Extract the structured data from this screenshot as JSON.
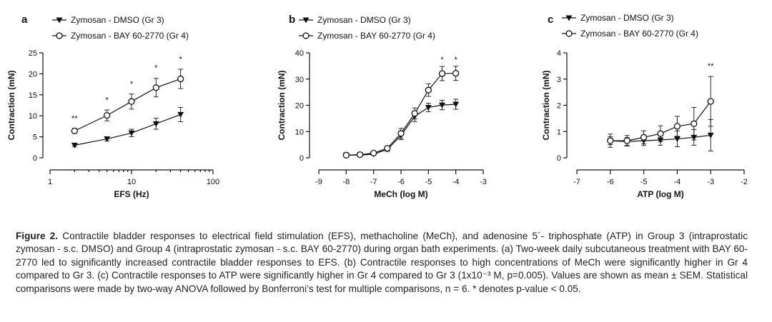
{
  "chart_data": [
    {
      "panel": "a",
      "type": "line",
      "xscale": "log",
      "xlabel": "EFS (Hz)",
      "ylabel": "Contraction (mN)",
      "xlim": [
        1,
        100
      ],
      "ylim": [
        0,
        25
      ],
      "xticks": [
        1,
        10,
        100
      ],
      "yticks": [
        0,
        5,
        10,
        15,
        20,
        25
      ],
      "legend_placement": "top-left",
      "grid": false,
      "series": [
        {
          "name": "Zymosan - DMSO (Gr 3)",
          "marker": "filled-triangle-down",
          "x": [
            2,
            5,
            10,
            20,
            40
          ],
          "y": [
            3.0,
            4.5,
            5.9,
            8.1,
            10.3
          ],
          "sem": [
            0.3,
            0.5,
            0.9,
            1.3,
            1.7
          ]
        },
        {
          "name": "Zymosan - BAY 60-2770 (Gr 4)",
          "marker": "open-circle",
          "x": [
            2,
            5,
            10,
            20,
            40
          ],
          "y": [
            6.4,
            10.1,
            13.4,
            16.7,
            18.8
          ],
          "sem": [
            0.6,
            1.3,
            1.8,
            2.2,
            2.3
          ]
        }
      ],
      "annotations": [
        {
          "x": 2,
          "y": 8.8,
          "text": "**"
        },
        {
          "x": 5,
          "y": 13.2,
          "text": "*"
        },
        {
          "x": 10,
          "y": 17.0,
          "text": "*"
        },
        {
          "x": 20,
          "y": 20.8,
          "text": "*"
        },
        {
          "x": 40,
          "y": 22.9,
          "text": "*"
        }
      ]
    },
    {
      "panel": "b",
      "type": "line",
      "xscale": "linear",
      "xlabel": "MeCh (log M)",
      "ylabel": "Contraction (mN)",
      "xlim": [
        -9,
        -3
      ],
      "ylim": [
        0,
        40
      ],
      "xticks": [
        -9,
        -8,
        -7,
        -6,
        -5,
        -4,
        -3
      ],
      "yticks": [
        0,
        10,
        20,
        30,
        40
      ],
      "legend_placement": "top-left",
      "grid": false,
      "series": [
        {
          "name": "Zymosan - DMSO (Gr 3)",
          "marker": "filled-triangle-down",
          "x": [
            -8,
            -7.5,
            -7,
            -6.5,
            -6,
            -5.5,
            -5,
            -4.5,
            -4
          ],
          "y": [
            1.0,
            1.0,
            1.4,
            3.2,
            8.5,
            15.8,
            19.2,
            20.1,
            20.4
          ],
          "sem": [
            0.3,
            0.3,
            0.4,
            0.7,
            1.6,
            2.0,
            1.6,
            1.8,
            1.9
          ]
        },
        {
          "name": "Zymosan - BAY 60-2770 (Gr 4)",
          "marker": "open-circle",
          "x": [
            -8,
            -7.5,
            -7,
            -6.5,
            -6,
            -5.5,
            -5,
            -4.5,
            -4
          ],
          "y": [
            1.0,
            1.2,
            1.8,
            3.6,
            9.3,
            16.9,
            25.8,
            32.1,
            32.2
          ],
          "sem": [
            0.3,
            0.3,
            0.4,
            0.8,
            1.9,
            2.1,
            2.4,
            2.7,
            2.7
          ]
        }
      ],
      "annotations": [
        {
          "x": -4.5,
          "y": 36.5,
          "text": "*"
        },
        {
          "x": -4,
          "y": 36.5,
          "text": "*"
        }
      ]
    },
    {
      "panel": "c",
      "type": "line",
      "xscale": "linear",
      "xlabel": "ATP (log M)",
      "ylabel": "Contraction (mN)",
      "xlim": [
        -7,
        -2
      ],
      "ylim": [
        0,
        4
      ],
      "xticks": [
        -7,
        -6,
        -5,
        -4,
        -3,
        -2
      ],
      "yticks": [
        0,
        1,
        2,
        3,
        4
      ],
      "legend_placement": "top-left",
      "grid": false,
      "series": [
        {
          "name": "Zymosan - DMSO (Gr 3)",
          "marker": "filled-triangle-down",
          "x": [
            -6,
            -5.5,
            -5,
            -4.5,
            -4,
            -3.5,
            -3
          ],
          "y": [
            0.65,
            0.62,
            0.65,
            0.68,
            0.72,
            0.78,
            0.86
          ],
          "sem": [
            0.15,
            0.15,
            0.18,
            0.2,
            0.3,
            0.3,
            0.6
          ]
        },
        {
          "name": "Zymosan - BAY 60-2770 (Gr 4)",
          "marker": "open-circle",
          "x": [
            -6,
            -5.5,
            -5,
            -4.5,
            -4,
            -3.5,
            -3
          ],
          "y": [
            0.65,
            0.65,
            0.78,
            0.92,
            1.2,
            1.3,
            2.15
          ],
          "sem": [
            0.25,
            0.2,
            0.25,
            0.3,
            0.38,
            0.62,
            0.95
          ]
        }
      ],
      "annotations": [
        {
          "x": -3,
          "y": 3.4,
          "text": "**"
        }
      ]
    }
  ],
  "caption": {
    "label": "Figure 2.",
    "text": " Contractile bladder responses to electrical field stimulation (EFS), methacholine (MeCh), and adenosine 5´- triphosphate (ATP) in Group 3 (intraprostatic zymosan - s.c. DMSO) and Group 4 (intraprostatic zymosan - s.c. BAY 60-2770) during organ bath experiments. (a) Two-week daily subcutaneous treatment with BAY 60-2770 led to significantly increased contractile bladder responses to EFS. (b) Contractile responses to high concentrations of MeCh were significantly higher in Gr 4 compared to Gr 3. (c) Contractile responses to ATP were significantly higher in Gr 4 compared to Gr 3 (1x10⁻³ M, p=0.005). Values are shown as mean ± SEM. Statistical comparisons were made by two-way ANOVA followed by Bonferroni’s test for multiple comparisons, n = 6. * denotes p-value < 0.05."
  }
}
